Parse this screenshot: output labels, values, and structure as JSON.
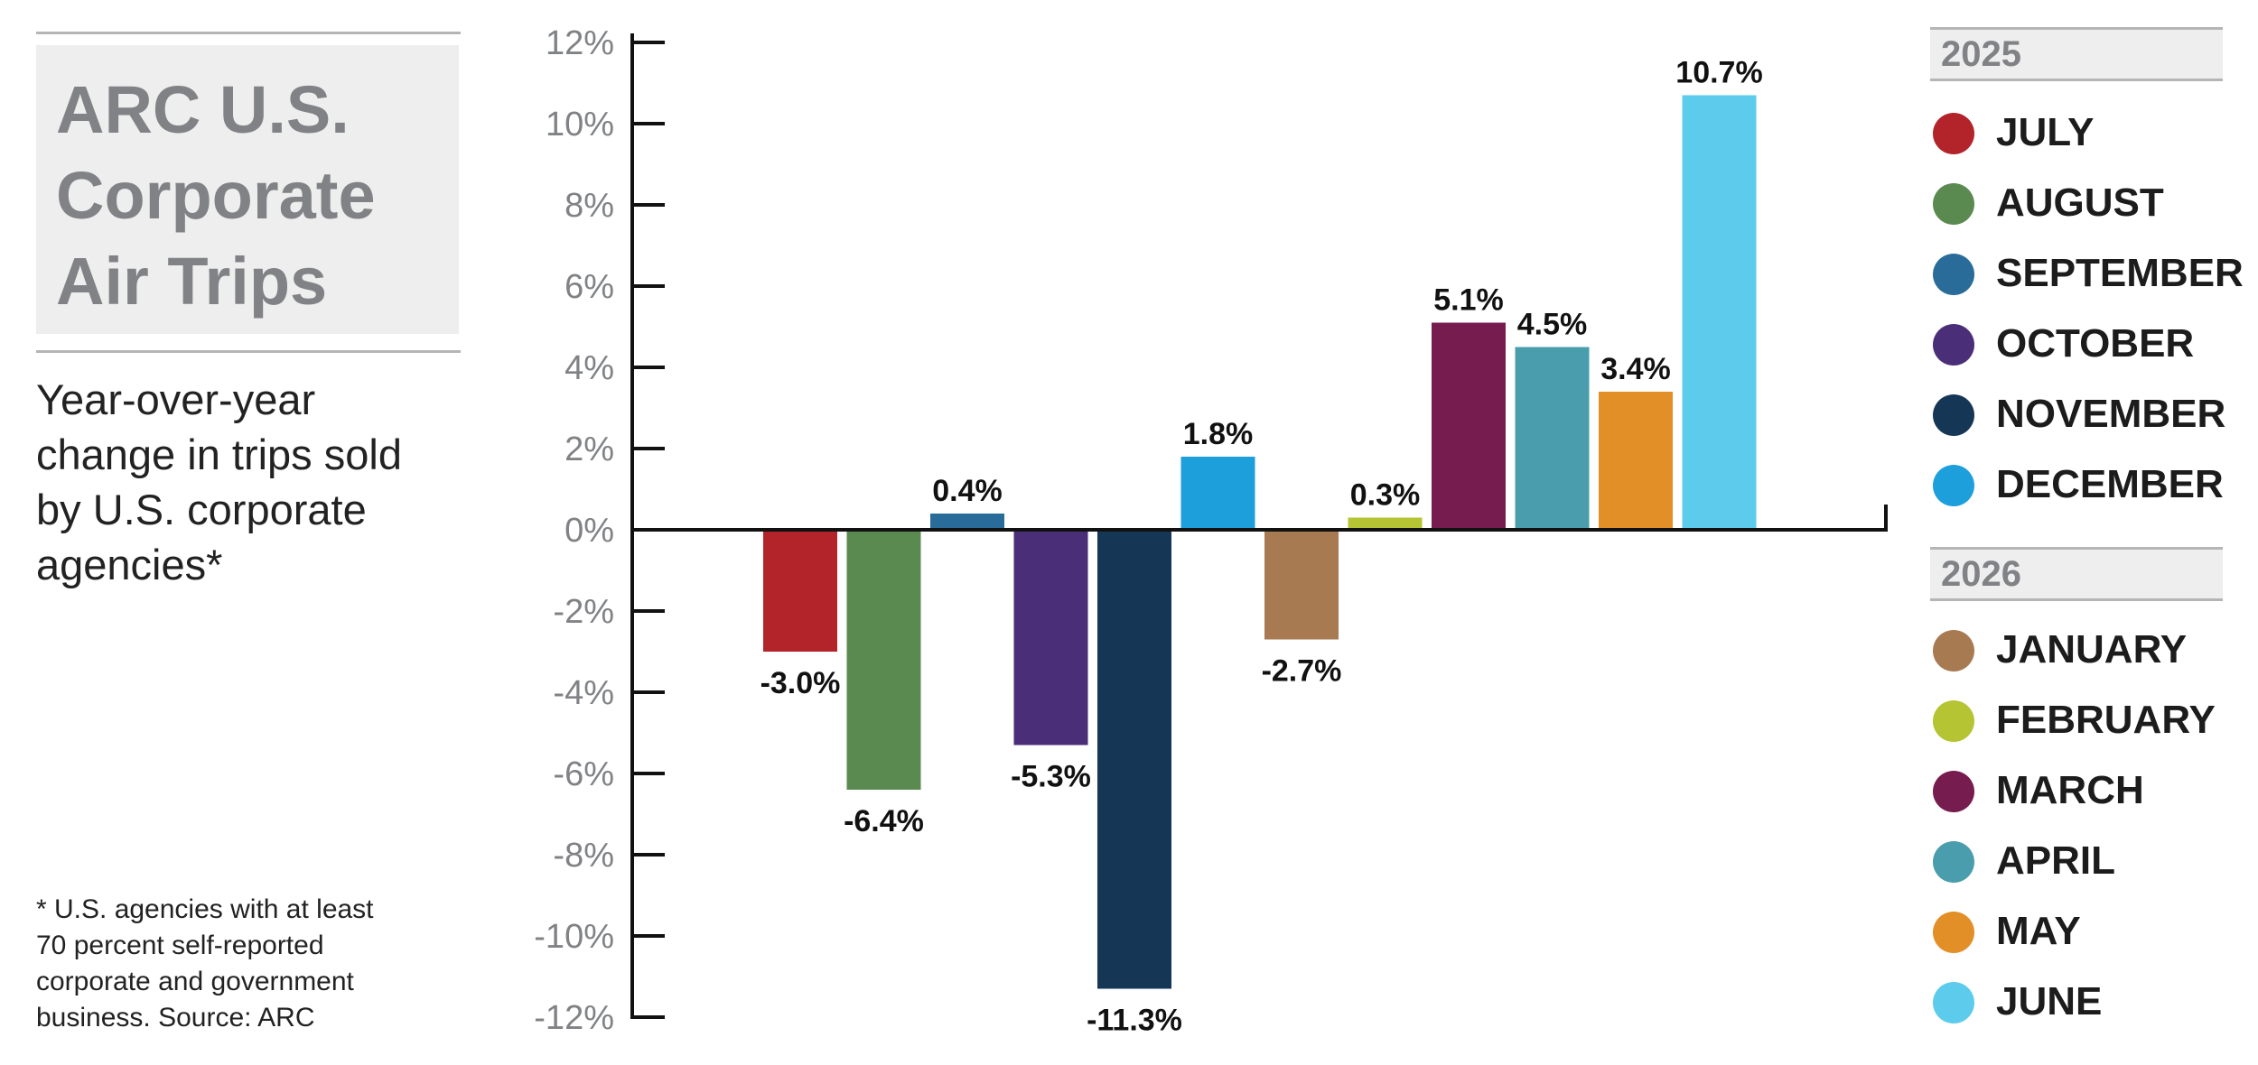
{
  "title_lines": [
    "ARC U.S.",
    "Corporate",
    "Air Trips"
  ],
  "subtitle_lines": [
    "Year-over-year",
    "change in trips sold",
    "by U.S. corporate",
    "agencies*"
  ],
  "footnote_lines": [
    "* U.S. agencies with at least",
    "70 percent self-reported",
    "corporate and government",
    "business. Source: ARC"
  ],
  "legend": {
    "groups": [
      {
        "year": "2025",
        "items": [
          {
            "label": "JULY",
            "color": "#b3232a"
          },
          {
            "label": "AUGUST",
            "color": "#5a8a4f"
          },
          {
            "label": "SEPTEMBER",
            "color": "#2a6c99"
          },
          {
            "label": "OCTOBER",
            "color": "#4a2e78"
          },
          {
            "label": "NOVEMBER",
            "color": "#163656"
          },
          {
            "label": "DECEMBER",
            "color": "#1d9fdc"
          }
        ]
      },
      {
        "year": "2026",
        "items": [
          {
            "label": "JANUARY",
            "color": "#a87a52"
          },
          {
            "label": "FEBRUARY",
            "color": "#b5c432"
          },
          {
            "label": "MARCH",
            "color": "#761c4e"
          },
          {
            "label": "APRIL",
            "color": "#4a9dac"
          },
          {
            "label": "MAY",
            "color": "#e38f27"
          },
          {
            "label": "JUNE",
            "color": "#5ccbec"
          }
        ]
      }
    ]
  },
  "chart_data": {
    "type": "bar",
    "categories": [
      "JULY",
      "AUGUST",
      "SEPTEMBER",
      "OCTOBER",
      "NOVEMBER",
      "DECEMBER",
      "JANUARY",
      "FEBRUARY",
      "MARCH",
      "APRIL",
      "MAY",
      "JUNE"
    ],
    "values": [
      -3.0,
      -6.4,
      0.4,
      -5.3,
      -11.3,
      1.8,
      -2.7,
      0.3,
      5.1,
      4.5,
      3.4,
      10.7
    ],
    "data_labels": [
      "-3.0%",
      "-6.4%",
      "0.4%",
      "-5.3%",
      "-11.3%",
      "1.8%",
      "-2.7%",
      "0.3%",
      "5.1%",
      "4.5%",
      "3.4%",
      "10.7%"
    ],
    "colors": [
      "#b3232a",
      "#5a8a4f",
      "#2a6c99",
      "#4a2e78",
      "#163656",
      "#1d9fdc",
      "#a87a52",
      "#b5c432",
      "#761c4e",
      "#4a9dac",
      "#e38f27",
      "#5ccbec"
    ],
    "ylim": [
      -12,
      12
    ],
    "yticks": [
      12,
      10,
      8,
      6,
      4,
      2,
      0,
      -2,
      -4,
      -6,
      -8,
      -10,
      -12
    ],
    "ytick_labels": [
      "12%",
      "10%",
      "8%",
      "6%",
      "4%",
      "2%",
      "0%",
      "-2%",
      "-4%",
      "-6%",
      "-8%",
      "-10%",
      "-12%"
    ],
    "title": "",
    "xlabel": "",
    "ylabel": "",
    "grid": false,
    "legend_position": "right"
  }
}
